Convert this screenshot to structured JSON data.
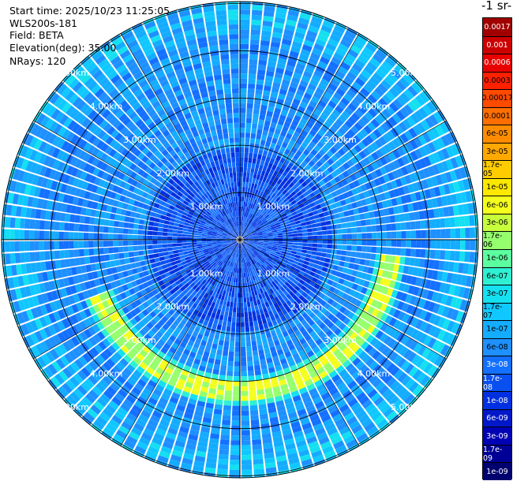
{
  "header": {
    "start_time": "Start time: 2025/10/23 11:25:05",
    "instrument": "WLS200s-181",
    "field": "Field: BETA",
    "elevation": "Elevation(deg): 35.00",
    "nrays": "NRays: 120"
  },
  "colorbar": {
    "title": "-1 sr-",
    "labels": [
      "0.0017",
      "0.001",
      "0.0006",
      "0.0003",
      "0.00017",
      "0.0001",
      "6e-05",
      "3e-05",
      "1.7e-05",
      "1e-05",
      "6e-06",
      "3e-06",
      "1.7e-06",
      "1e-06",
      "6e-07",
      "3e-07",
      "1.7e-07",
      "1e-07",
      "6e-08",
      "3e-08",
      "1.7e-08",
      "1e-08",
      "6e-09",
      "3e-09",
      "1.7e-09",
      "1e-09"
    ],
    "colors": [
      "#a00000",
      "#cc0000",
      "#e80000",
      "#ff2000",
      "#ff4a00",
      "#ff6e00",
      "#ff8c00",
      "#ffa800",
      "#ffcc00",
      "#ffe800",
      "#f4ff1e",
      "#c8ff3c",
      "#96ff6e",
      "#5cffa0",
      "#2ef0d2",
      "#14e0f0",
      "#10c8ff",
      "#14acff",
      "#1e90ff",
      "#1470ff",
      "#0a50f0",
      "#0030e0",
      "#0018c8",
      "#0000b4",
      "#000096",
      "#00006e"
    ]
  },
  "chart_data": {
    "type": "heatmap",
    "projection": "polar PPI",
    "nrays": 120,
    "ring_labels": [
      "1.00km",
      "2.00km",
      "3.00km",
      "4.00km",
      "5.00km"
    ],
    "rings_km": [
      1,
      2,
      3,
      4,
      5
    ],
    "max_range_km": 5.0,
    "features": [
      {
        "description_type": "arc",
        "value": "1.7e-05",
        "range_km": [
          3.0,
          3.4
        ],
        "azimuth_deg": [
          95,
          250
        ]
      },
      {
        "description_type": "background",
        "value": "1e-07 to 1e-08"
      }
    ]
  }
}
